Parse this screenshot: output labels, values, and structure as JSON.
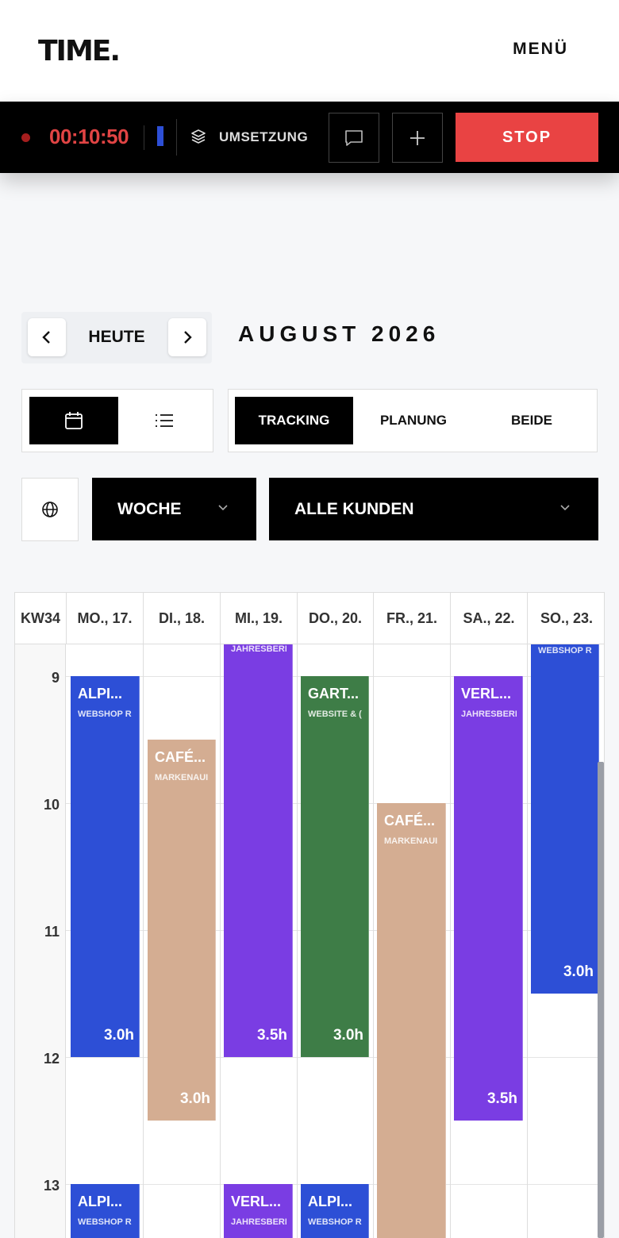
{
  "header": {
    "logo": "TIME.",
    "menu": "MENÜ"
  },
  "timer": {
    "time": "00:10:50",
    "project": "UMSETZUNG",
    "stop_label": "STOP"
  },
  "nav": {
    "today": "HEUTE",
    "month_title": "AUGUST 2026"
  },
  "modes": [
    "TRACKING",
    "PLANUNG",
    "BEIDE"
  ],
  "filters": {
    "range": "WOCHE",
    "client": "ALLE KUNDEN"
  },
  "calendar": {
    "week": "KW34",
    "days": [
      "MO., 17.",
      "DI., 18.",
      "MI., 19.",
      "DO., 20.",
      "FR., 21.",
      "SA., 22.",
      "SO., 23."
    ],
    "hours": [
      "9",
      "10",
      "11",
      "12",
      "13"
    ],
    "events": [
      {
        "title": "ALPI...",
        "sub": "WEBSHOP R",
        "duration": "3.0h"
      },
      {
        "title": "CAFÉ...",
        "sub": "MARKENAUI",
        "duration": "3.0h"
      },
      {
        "title": "",
        "sub": "JAHRESBERI",
        "duration": "3.5h"
      },
      {
        "title": "GART...",
        "sub": "WEBSITE & (",
        "duration": "3.0h"
      },
      {
        "title": "CAFÉ...",
        "sub": "MARKENAUI",
        "duration": ""
      },
      {
        "title": "VERL...",
        "sub": "JAHRESBERI",
        "duration": "3.5h"
      },
      {
        "title": "",
        "sub": "WEBSHOP R",
        "duration": "3.0h"
      },
      {
        "title": "ALPI...",
        "sub": "WEBSHOP R",
        "duration": ""
      },
      {
        "title": "VERL...",
        "sub": "JAHRESBERI",
        "duration": ""
      },
      {
        "title": "ALPI...",
        "sub": "WEBSHOP R",
        "duration": ""
      }
    ]
  },
  "colors": {
    "accent_red": "#e94343",
    "timer_red": "#e14444",
    "event_blue": "#2d4fd6",
    "event_beige": "#d4ad92",
    "event_purple": "#7a3de3",
    "event_green": "#3e7d47"
  },
  "icons": [
    "layers-icon",
    "comment-icon",
    "plus-icon",
    "chevron-left-icon",
    "chevron-right-icon",
    "calendar-icon",
    "list-icon",
    "globe-icon",
    "chevron-down-icon"
  ]
}
